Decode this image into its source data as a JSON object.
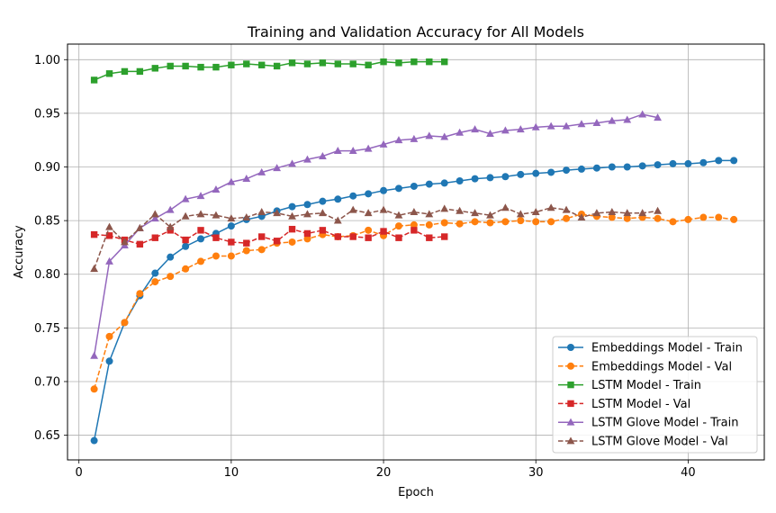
{
  "chart_data": {
    "type": "line",
    "title": "Training and Validation Accuracy for All Models",
    "xlabel": "Epoch",
    "ylabel": "Accuracy",
    "xlim": [
      -0.75,
      45.0
    ],
    "ylim": [
      0.627,
      1.0145
    ],
    "xticks": [
      0,
      10,
      20,
      30,
      40
    ],
    "yticks": [
      0.65,
      0.7,
      0.75,
      0.8,
      0.85,
      0.9,
      0.95,
      1.0
    ],
    "xtick_labels": [
      "0",
      "10",
      "20",
      "30",
      "40"
    ],
    "ytick_labels": [
      "0.65",
      "0.70",
      "0.75",
      "0.80",
      "0.85",
      "0.90",
      "0.95",
      "1.00"
    ],
    "grid": true,
    "legend_position": "bottom-right",
    "series": [
      {
        "name": "Embeddings Model - Train",
        "color": "#1f77b4",
        "marker": "circle",
        "linestyle": "solid",
        "x": [
          1,
          2,
          3,
          4,
          5,
          6,
          7,
          8,
          9,
          10,
          11,
          12,
          13,
          14,
          15,
          16,
          17,
          18,
          19,
          20,
          21,
          22,
          23,
          24,
          25,
          26,
          27,
          28,
          29,
          30,
          31,
          32,
          33,
          34,
          35,
          36,
          37,
          38,
          39,
          40,
          41,
          42,
          43
        ],
        "values": [
          0.645,
          0.719,
          0.755,
          0.78,
          0.801,
          0.816,
          0.826,
          0.833,
          0.838,
          0.845,
          0.851,
          0.854,
          0.859,
          0.863,
          0.865,
          0.868,
          0.87,
          0.873,
          0.875,
          0.878,
          0.88,
          0.882,
          0.884,
          0.885,
          0.887,
          0.889,
          0.89,
          0.891,
          0.893,
          0.894,
          0.895,
          0.897,
          0.898,
          0.899,
          0.9,
          0.9,
          0.901,
          0.902,
          0.903,
          0.903,
          0.904,
          0.906,
          0.906
        ]
      },
      {
        "name": "Embeddings Model - Val",
        "color": "#ff7f0e",
        "marker": "circle",
        "linestyle": "dashed",
        "x": [
          1,
          2,
          3,
          4,
          5,
          6,
          7,
          8,
          9,
          10,
          11,
          12,
          13,
          14,
          15,
          16,
          17,
          18,
          19,
          20,
          21,
          22,
          23,
          24,
          25,
          26,
          27,
          28,
          29,
          30,
          31,
          32,
          33,
          34,
          35,
          36,
          37,
          38,
          39,
          40,
          41,
          42,
          43
        ],
        "values": [
          0.693,
          0.742,
          0.755,
          0.782,
          0.793,
          0.798,
          0.805,
          0.812,
          0.817,
          0.817,
          0.822,
          0.823,
          0.829,
          0.83,
          0.833,
          0.837,
          0.835,
          0.836,
          0.841,
          0.836,
          0.845,
          0.846,
          0.846,
          0.848,
          0.847,
          0.849,
          0.848,
          0.849,
          0.85,
          0.849,
          0.849,
          0.852,
          0.856,
          0.854,
          0.853,
          0.852,
          0.853,
          0.852,
          0.849,
          0.851,
          0.853,
          0.853,
          0.851
        ]
      },
      {
        "name": "LSTM Model - Train",
        "color": "#2ca02c",
        "marker": "square",
        "linestyle": "solid",
        "x": [
          1,
          2,
          3,
          4,
          5,
          6,
          7,
          8,
          9,
          10,
          11,
          12,
          13,
          14,
          15,
          16,
          17,
          18,
          19,
          20,
          21,
          22,
          23,
          24
        ],
        "values": [
          0.981,
          0.987,
          0.989,
          0.989,
          0.992,
          0.994,
          0.994,
          0.993,
          0.993,
          0.995,
          0.996,
          0.995,
          0.994,
          0.997,
          0.996,
          0.997,
          0.996,
          0.996,
          0.995,
          0.998,
          0.997,
          0.998,
          0.998,
          0.998
        ]
      },
      {
        "name": "LSTM Model - Val",
        "color": "#d62728",
        "marker": "square",
        "linestyle": "dashed",
        "x": [
          1,
          2,
          3,
          4,
          5,
          6,
          7,
          8,
          9,
          10,
          11,
          12,
          13,
          14,
          15,
          16,
          17,
          18,
          19,
          20,
          21,
          22,
          23,
          24
        ],
        "values": [
          0.837,
          0.836,
          0.832,
          0.828,
          0.834,
          0.841,
          0.832,
          0.841,
          0.834,
          0.83,
          0.829,
          0.835,
          0.831,
          0.842,
          0.838,
          0.841,
          0.835,
          0.835,
          0.834,
          0.84,
          0.834,
          0.841,
          0.834,
          0.835
        ]
      },
      {
        "name": "LSTM Glove Model - Train",
        "color": "#9467bd",
        "marker": "triangle",
        "linestyle": "solid",
        "x": [
          1,
          2,
          3,
          4,
          5,
          6,
          7,
          8,
          9,
          10,
          11,
          12,
          13,
          14,
          15,
          16,
          17,
          18,
          19,
          20,
          21,
          22,
          23,
          24,
          25,
          26,
          27,
          28,
          29,
          30,
          31,
          32,
          33,
          34,
          35,
          36,
          37,
          38
        ],
        "values": [
          0.724,
          0.812,
          0.827,
          0.843,
          0.852,
          0.86,
          0.87,
          0.873,
          0.879,
          0.886,
          0.889,
          0.895,
          0.899,
          0.903,
          0.907,
          0.91,
          0.915,
          0.915,
          0.917,
          0.921,
          0.925,
          0.926,
          0.929,
          0.928,
          0.932,
          0.935,
          0.931,
          0.934,
          0.935,
          0.937,
          0.938,
          0.938,
          0.94,
          0.941,
          0.943,
          0.944,
          0.949,
          0.946
        ]
      },
      {
        "name": "LSTM Glove Model - Val",
        "color": "#8c564b",
        "marker": "triangle",
        "linestyle": "dashed",
        "x": [
          1,
          2,
          3,
          4,
          5,
          6,
          7,
          8,
          9,
          10,
          11,
          12,
          13,
          14,
          15,
          16,
          17,
          18,
          19,
          20,
          21,
          22,
          23,
          24,
          25,
          26,
          27,
          28,
          29,
          30,
          31,
          32,
          33,
          34,
          35,
          36,
          37,
          38
        ],
        "values": [
          0.805,
          0.844,
          0.83,
          0.843,
          0.856,
          0.844,
          0.854,
          0.856,
          0.855,
          0.852,
          0.853,
          0.858,
          0.857,
          0.854,
          0.856,
          0.857,
          0.85,
          0.86,
          0.857,
          0.86,
          0.855,
          0.858,
          0.856,
          0.861,
          0.859,
          0.857,
          0.855,
          0.862,
          0.856,
          0.858,
          0.862,
          0.86,
          0.853,
          0.857,
          0.858,
          0.857,
          0.857,
          0.859
        ]
      }
    ]
  }
}
